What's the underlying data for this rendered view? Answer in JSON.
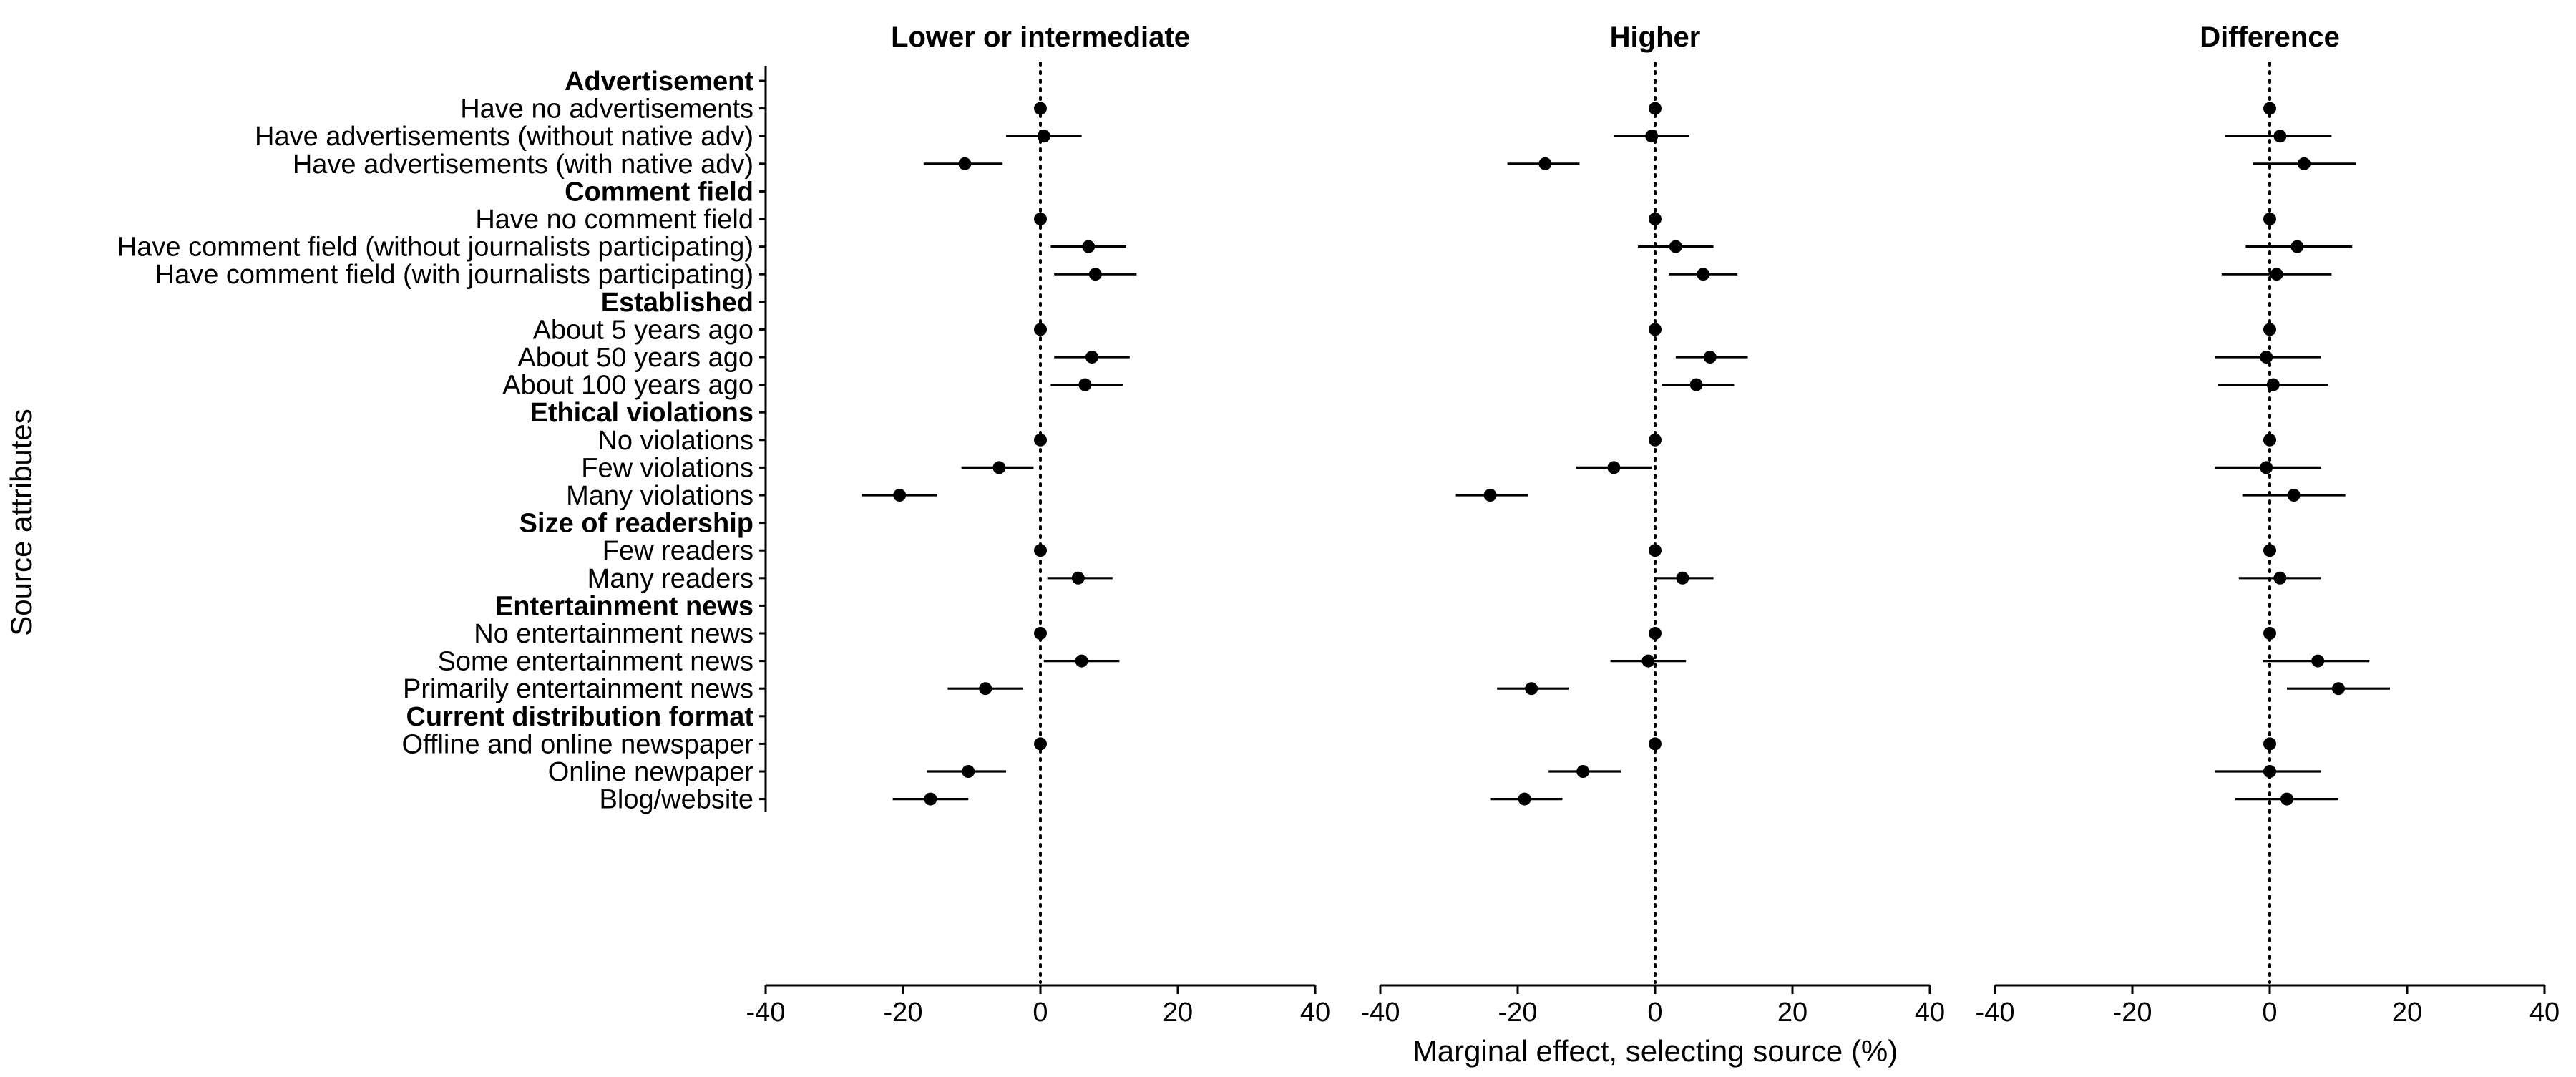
{
  "chart_data": {
    "type": "forest",
    "title": "",
    "ylabel": "Source attributes",
    "xlabel": "Marginal effect, selecting source (%)",
    "xlim": [
      -40,
      40
    ],
    "xticks": [
      -40,
      -20,
      0,
      20,
      40
    ],
    "tick_labels": [
      "-40",
      "-20",
      "0",
      "20",
      "40"
    ],
    "reference_line": 0,
    "reference_line_style": "dotted",
    "grid": false,
    "point_color": "#000000",
    "panels": [
      "Lower or intermediate",
      "Higher",
      "Difference"
    ],
    "rows": [
      {
        "label": "Advertisement",
        "header": true
      },
      {
        "label": "Have no advertisements",
        "values": [
          [
            0,
            0,
            0
          ],
          [
            0,
            0,
            0
          ],
          [
            0,
            0,
            0
          ]
        ]
      },
      {
        "label": "Have advertisements (without native adv)",
        "values": [
          [
            0.5,
            -5,
            6
          ],
          [
            -0.5,
            -6,
            5
          ],
          [
            1.5,
            -6.5,
            9
          ]
        ]
      },
      {
        "label": "Have advertisements (with native adv)",
        "values": [
          [
            -11,
            -17,
            -5.5
          ],
          [
            -16,
            -21.5,
            -11
          ],
          [
            5,
            -2.5,
            12.5
          ]
        ]
      },
      {
        "label": "Comment field",
        "header": true
      },
      {
        "label": "Have no comment field",
        "values": [
          [
            0,
            0,
            0
          ],
          [
            0,
            0,
            0
          ],
          [
            0,
            0,
            0
          ]
        ]
      },
      {
        "label": "Have comment field (without journalists participating)",
        "values": [
          [
            7,
            1.5,
            12.5
          ],
          [
            3,
            -2.5,
            8.5
          ],
          [
            4,
            -3.5,
            12
          ]
        ]
      },
      {
        "label": "Have comment field (with journalists participating)",
        "values": [
          [
            8,
            2,
            14
          ],
          [
            7,
            2,
            12
          ],
          [
            1,
            -7,
            9
          ]
        ]
      },
      {
        "label": "Established",
        "header": true
      },
      {
        "label": "About 5 years ago",
        "values": [
          [
            0,
            0,
            0
          ],
          [
            0,
            0,
            0
          ],
          [
            0,
            0,
            0
          ]
        ]
      },
      {
        "label": "About 50 years ago",
        "values": [
          [
            7.5,
            2,
            13
          ],
          [
            8,
            3,
            13.5
          ],
          [
            -0.5,
            -8,
            7.5
          ]
        ]
      },
      {
        "label": "About 100 years ago",
        "values": [
          [
            6.5,
            1.5,
            12
          ],
          [
            6,
            1,
            11.5
          ],
          [
            0.5,
            -7.5,
            8.5
          ]
        ]
      },
      {
        "label": "Ethical violations",
        "header": true
      },
      {
        "label": "No violations",
        "values": [
          [
            0,
            0,
            0
          ],
          [
            0,
            0,
            0
          ],
          [
            0,
            0,
            0
          ]
        ]
      },
      {
        "label": "Few violations",
        "values": [
          [
            -6,
            -11.5,
            -1
          ],
          [
            -6,
            -11.5,
            -0.5
          ],
          [
            -0.5,
            -8,
            7.5
          ]
        ]
      },
      {
        "label": "Many violations",
        "values": [
          [
            -20.5,
            -26,
            -15
          ],
          [
            -24,
            -29,
            -18.5
          ],
          [
            3.5,
            -4,
            11
          ]
        ]
      },
      {
        "label": "Size of readership",
        "header": true
      },
      {
        "label": "Few readers",
        "values": [
          [
            0,
            0,
            0
          ],
          [
            0,
            0,
            0
          ],
          [
            0,
            0,
            0
          ]
        ]
      },
      {
        "label": "Many readers",
        "values": [
          [
            5.5,
            1,
            10.5
          ],
          [
            4,
            0,
            8.5
          ],
          [
            1.5,
            -4.5,
            7.5
          ]
        ]
      },
      {
        "label": "Entertainment news",
        "header": true
      },
      {
        "label": "No entertainment news",
        "values": [
          [
            0,
            0,
            0
          ],
          [
            0,
            0,
            0
          ],
          [
            0,
            0,
            0
          ]
        ]
      },
      {
        "label": "Some entertainment news",
        "values": [
          [
            6,
            0.5,
            11.5
          ],
          [
            -1,
            -6.5,
            4.5
          ],
          [
            7,
            -1,
            14.5
          ]
        ]
      },
      {
        "label": "Primarily entertainment news",
        "values": [
          [
            -8,
            -13.5,
            -2.5
          ],
          [
            -18,
            -23,
            -12.5
          ],
          [
            10,
            2.5,
            17.5
          ]
        ]
      },
      {
        "label": "Current distribution format",
        "header": true
      },
      {
        "label": "Offline and online newspaper",
        "values": [
          [
            0,
            0,
            0
          ],
          [
            0,
            0,
            0
          ],
          [
            0,
            0,
            0
          ]
        ]
      },
      {
        "label": "Online newpaper",
        "values": [
          [
            -10.5,
            -16.5,
            -5
          ],
          [
            -10.5,
            -15.5,
            -5
          ],
          [
            0,
            -8,
            7.5
          ]
        ]
      },
      {
        "label": "Blog/website",
        "values": [
          [
            -16,
            -21.5,
            -10.5
          ],
          [
            -19,
            -24,
            -13.5
          ],
          [
            2.5,
            -5,
            10
          ]
        ]
      }
    ]
  }
}
